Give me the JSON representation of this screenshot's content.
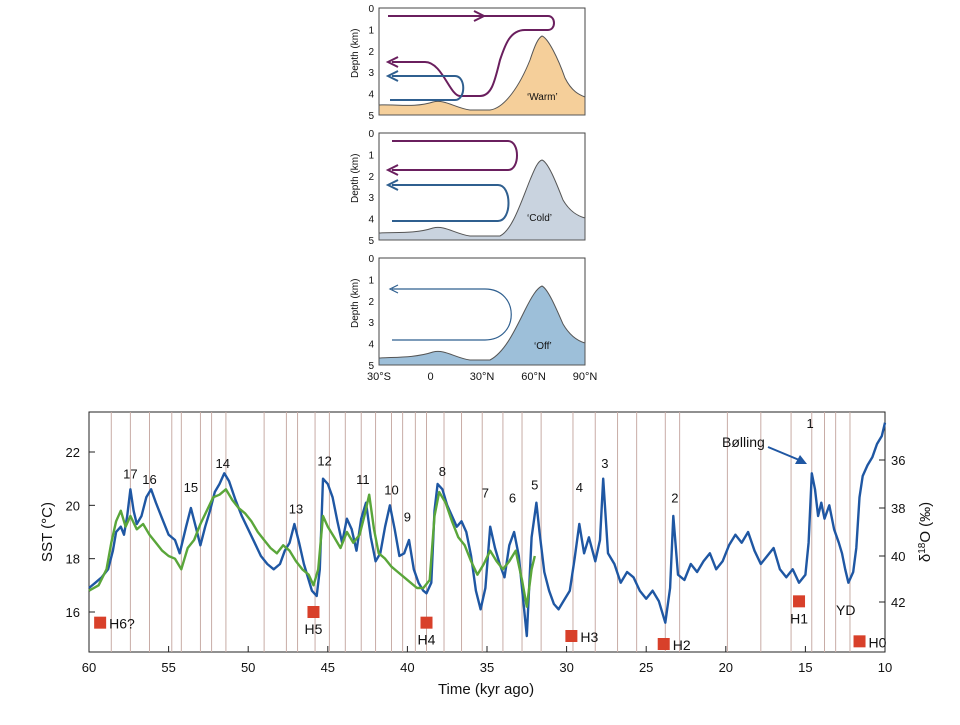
{
  "panels": {
    "ylabel": "Depth (km)",
    "depth_ticks": [
      "0",
      "1",
      "2",
      "3",
      "4",
      "5"
    ],
    "lat_ticks": [
      "30°S",
      "0",
      "30°N",
      "60°N",
      "90°N"
    ],
    "modes": [
      {
        "label": "‘Warm’",
        "fill": "#f5cf9a"
      },
      {
        "label": "‘Cold’",
        "fill": "#c9d3df"
      },
      {
        "label": "‘Off’",
        "fill": "#9dbfd9"
      }
    ],
    "colors": {
      "upper_cell": "#6a1f5e",
      "deep_cell": "#2f5f8f"
    }
  },
  "chart_data": {
    "type": "line",
    "xlabel": "Time (kyr ago)",
    "ylabel": "SST (°C)",
    "y2label": "δ18O (‰)",
    "xlim": [
      60,
      10
    ],
    "ylim": [
      14.5,
      23.5
    ],
    "x_ticks": [
      "60",
      "55",
      "50",
      "45",
      "40",
      "35",
      "30",
      "25",
      "20",
      "15",
      "10"
    ],
    "y_ticks": [
      "16",
      "18",
      "20",
      "22"
    ],
    "y2_ticks": [
      "36",
      "38",
      "40",
      "42"
    ],
    "interstadials": [
      {
        "label": "17",
        "x": 57.4,
        "sst": 21.0
      },
      {
        "label": "16",
        "x": 56.2,
        "sst": 20.8
      },
      {
        "label": "15",
        "x": 53.6,
        "sst": 20.5
      },
      {
        "label": "14",
        "x": 51.6,
        "sst": 21.4
      },
      {
        "label": "13",
        "x": 47.0,
        "sst": 19.7
      },
      {
        "label": "12",
        "x": 45.2,
        "sst": 21.5
      },
      {
        "label": "11",
        "x": 42.8,
        "sst": 20.8
      },
      {
        "label": "10",
        "x": 41.0,
        "sst": 20.4
      },
      {
        "label": "9",
        "x": 40.0,
        "sst": 19.4
      },
      {
        "label": "8",
        "x": 37.8,
        "sst": 21.1
      },
      {
        "label": "7",
        "x": 35.1,
        "sst": 20.3
      },
      {
        "label": "6",
        "x": 33.4,
        "sst": 20.1
      },
      {
        "label": "5",
        "x": 32.0,
        "sst": 20.6
      },
      {
        "label": "4",
        "x": 29.2,
        "sst": 20.5
      },
      {
        "label": "3",
        "x": 27.6,
        "sst": 21.4
      },
      {
        "label": "2",
        "x": 23.2,
        "sst": 20.1
      },
      {
        "label": "1",
        "x": 14.7,
        "sst": 22.9
      }
    ],
    "heinrich_events": [
      {
        "label": "H6?",
        "x": 59.3,
        "sst": 15.6
      },
      {
        "label": "H5",
        "x": 45.9,
        "sst": 16.0
      },
      {
        "label": "H4",
        "x": 38.8,
        "sst": 15.6
      },
      {
        "label": "H3",
        "x": 29.7,
        "sst": 15.1
      },
      {
        "label": "H2",
        "x": 23.9,
        "sst": 14.8
      },
      {
        "label": "H1",
        "x": 15.4,
        "sst": 16.4
      },
      {
        "label": "H0",
        "x": 11.6,
        "sst": 14.9
      }
    ],
    "annotations": {
      "bolling": "Bølling",
      "yd": "YD"
    },
    "grid_x": [
      58.6,
      57.4,
      56.2,
      54.8,
      54.2,
      53.0,
      52.3,
      51.4,
      49.0,
      47.6,
      46.9,
      45.8,
      44.9,
      43.9,
      42.9,
      42.0,
      41.0,
      40.3,
      39.5,
      38.8,
      37.7,
      36.6,
      35.3,
      34.0,
      32.8,
      31.6,
      29.6,
      28.2,
      26.8,
      25.6,
      23.8,
      22.9,
      19.9,
      17.8,
      15.9,
      14.6,
      13.8,
      13.1,
      12.2
    ],
    "series": [
      {
        "name": "",
        "color": "#1f57a3",
        "points": [
          [
            60.0,
            16.9
          ],
          [
            59.6,
            17.1
          ],
          [
            59.2,
            17.3
          ],
          [
            58.8,
            17.6
          ],
          [
            58.5,
            18.3
          ],
          [
            58.3,
            19.0
          ],
          [
            58.0,
            19.2
          ],
          [
            57.8,
            18.9
          ],
          [
            57.6,
            19.6
          ],
          [
            57.4,
            20.6
          ],
          [
            57.2,
            19.8
          ],
          [
            57.0,
            19.3
          ],
          [
            56.7,
            19.6
          ],
          [
            56.4,
            20.3
          ],
          [
            56.1,
            20.6
          ],
          [
            55.8,
            20.1
          ],
          [
            55.4,
            19.5
          ],
          [
            55.0,
            18.9
          ],
          [
            54.6,
            18.7
          ],
          [
            54.3,
            18.2
          ],
          [
            53.9,
            19.2
          ],
          [
            53.6,
            19.9
          ],
          [
            53.3,
            19.2
          ],
          [
            53.0,
            18.5
          ],
          [
            52.7,
            19.2
          ],
          [
            52.4,
            19.8
          ],
          [
            52.1,
            20.5
          ],
          [
            51.8,
            20.8
          ],
          [
            51.5,
            21.2
          ],
          [
            51.2,
            20.9
          ],
          [
            50.8,
            20.2
          ],
          [
            50.4,
            19.6
          ],
          [
            50.0,
            19.1
          ],
          [
            49.6,
            18.6
          ],
          [
            49.2,
            18.1
          ],
          [
            48.8,
            17.8
          ],
          [
            48.4,
            17.6
          ],
          [
            48.0,
            17.8
          ],
          [
            47.7,
            18.3
          ],
          [
            47.4,
            18.6
          ],
          [
            47.1,
            19.3
          ],
          [
            46.8,
            18.6
          ],
          [
            46.5,
            17.8
          ],
          [
            46.2,
            17.2
          ],
          [
            46.0,
            16.8
          ],
          [
            45.7,
            16.6
          ],
          [
            45.5,
            17.6
          ],
          [
            45.3,
            21.0
          ],
          [
            45.0,
            20.8
          ],
          [
            44.7,
            20.3
          ],
          [
            44.4,
            19.4
          ],
          [
            44.1,
            18.6
          ],
          [
            43.8,
            19.5
          ],
          [
            43.5,
            19.1
          ],
          [
            43.2,
            18.3
          ],
          [
            42.9,
            19.5
          ],
          [
            42.6,
            20.1
          ],
          [
            42.3,
            18.8
          ],
          [
            42.0,
            17.9
          ],
          [
            41.7,
            18.2
          ],
          [
            41.4,
            19.2
          ],
          [
            41.1,
            20.0
          ],
          [
            40.8,
            19.1
          ],
          [
            40.5,
            18.1
          ],
          [
            40.2,
            18.2
          ],
          [
            39.9,
            18.7
          ],
          [
            39.6,
            17.6
          ],
          [
            39.3,
            17.1
          ],
          [
            39.0,
            16.8
          ],
          [
            38.8,
            16.7
          ],
          [
            38.5,
            17.1
          ],
          [
            38.3,
            19.8
          ],
          [
            38.1,
            20.8
          ],
          [
            37.8,
            20.6
          ],
          [
            37.5,
            20.0
          ],
          [
            37.2,
            19.6
          ],
          [
            36.9,
            19.2
          ],
          [
            36.6,
            19.4
          ],
          [
            36.3,
            19.0
          ],
          [
            36.0,
            18.1
          ],
          [
            35.7,
            16.8
          ],
          [
            35.4,
            16.1
          ],
          [
            35.1,
            16.9
          ],
          [
            34.8,
            19.2
          ],
          [
            34.5,
            18.4
          ],
          [
            34.2,
            17.8
          ],
          [
            33.9,
            17.3
          ],
          [
            33.6,
            18.5
          ],
          [
            33.3,
            19.0
          ],
          [
            33.0,
            18.1
          ],
          [
            32.7,
            16.3
          ],
          [
            32.5,
            15.1
          ],
          [
            32.2,
            18.8
          ],
          [
            31.9,
            20.1
          ],
          [
            31.7,
            19.0
          ],
          [
            31.4,
            17.5
          ],
          [
            31.1,
            16.8
          ],
          [
            30.8,
            16.3
          ],
          [
            30.5,
            16.1
          ],
          [
            30.2,
            16.4
          ],
          [
            29.8,
            16.8
          ],
          [
            29.5,
            18.0
          ],
          [
            29.2,
            19.3
          ],
          [
            28.9,
            18.2
          ],
          [
            28.6,
            18.8
          ],
          [
            28.2,
            17.9
          ],
          [
            27.9,
            18.7
          ],
          [
            27.7,
            21.0
          ],
          [
            27.4,
            18.2
          ],
          [
            27.0,
            17.8
          ],
          [
            26.6,
            17.1
          ],
          [
            26.2,
            17.5
          ],
          [
            25.8,
            17.3
          ],
          [
            25.4,
            16.8
          ],
          [
            25.0,
            16.5
          ],
          [
            24.6,
            16.8
          ],
          [
            24.2,
            16.4
          ],
          [
            23.8,
            15.6
          ],
          [
            23.5,
            16.9
          ],
          [
            23.3,
            19.6
          ],
          [
            23.0,
            17.4
          ],
          [
            22.6,
            17.2
          ],
          [
            22.2,
            17.8
          ],
          [
            21.8,
            17.5
          ],
          [
            21.4,
            17.9
          ],
          [
            21.0,
            18.2
          ],
          [
            20.6,
            17.6
          ],
          [
            20.2,
            17.9
          ],
          [
            19.8,
            18.5
          ],
          [
            19.4,
            18.9
          ],
          [
            19.0,
            18.6
          ],
          [
            18.6,
            19.0
          ],
          [
            18.2,
            18.3
          ],
          [
            17.8,
            17.8
          ],
          [
            17.4,
            18.1
          ],
          [
            17.0,
            18.4
          ],
          [
            16.6,
            17.6
          ],
          [
            16.2,
            17.3
          ],
          [
            15.8,
            17.6
          ],
          [
            15.4,
            17.1
          ],
          [
            15.0,
            17.4
          ],
          [
            14.8,
            18.6
          ],
          [
            14.6,
            21.2
          ],
          [
            14.4,
            20.6
          ],
          [
            14.2,
            19.6
          ],
          [
            14.0,
            20.1
          ],
          [
            13.8,
            19.5
          ],
          [
            13.5,
            20.0
          ],
          [
            13.2,
            19.1
          ],
          [
            12.9,
            18.6
          ],
          [
            12.7,
            18.2
          ],
          [
            12.5,
            17.6
          ],
          [
            12.3,
            17.1
          ],
          [
            12.0,
            17.5
          ],
          [
            11.8,
            18.4
          ],
          [
            11.6,
            20.3
          ],
          [
            11.4,
            21.1
          ],
          [
            11.1,
            21.5
          ],
          [
            10.8,
            21.8
          ],
          [
            10.5,
            22.3
          ],
          [
            10.2,
            22.6
          ],
          [
            10.0,
            23.1
          ]
        ]
      },
      {
        "name": "",
        "color": "#5aa63a",
        "points": [
          [
            60.0,
            16.8
          ],
          [
            59.4,
            17.0
          ],
          [
            58.9,
            17.6
          ],
          [
            58.6,
            18.6
          ],
          [
            58.3,
            19.4
          ],
          [
            58.0,
            19.8
          ],
          [
            57.7,
            19.2
          ],
          [
            57.4,
            19.6
          ],
          [
            57.0,
            19.1
          ],
          [
            56.6,
            19.3
          ],
          [
            56.2,
            18.9
          ],
          [
            55.8,
            18.6
          ],
          [
            55.4,
            18.3
          ],
          [
            55.0,
            18.1
          ],
          [
            54.6,
            18.0
          ],
          [
            54.2,
            17.6
          ],
          [
            53.8,
            18.4
          ],
          [
            53.4,
            18.7
          ],
          [
            53.0,
            19.3
          ],
          [
            52.6,
            19.8
          ],
          [
            52.2,
            20.3
          ],
          [
            51.8,
            20.4
          ],
          [
            51.4,
            20.6
          ],
          [
            51.0,
            20.2
          ],
          [
            50.6,
            19.9
          ],
          [
            50.2,
            19.7
          ],
          [
            49.8,
            19.4
          ],
          [
            49.4,
            19.0
          ],
          [
            49.0,
            18.7
          ],
          [
            48.6,
            18.4
          ],
          [
            48.2,
            18.2
          ],
          [
            47.8,
            18.5
          ],
          [
            47.4,
            18.3
          ],
          [
            47.0,
            17.9
          ],
          [
            46.6,
            17.6
          ],
          [
            46.2,
            17.4
          ],
          [
            45.9,
            17.0
          ],
          [
            45.6,
            17.6
          ],
          [
            45.3,
            19.6
          ],
          [
            45.0,
            19.2
          ],
          [
            44.6,
            18.8
          ],
          [
            44.2,
            18.4
          ],
          [
            43.8,
            19.0
          ],
          [
            43.4,
            18.6
          ],
          [
            43.0,
            18.9
          ],
          [
            42.7,
            19.6
          ],
          [
            42.4,
            20.4
          ],
          [
            42.1,
            19.1
          ],
          [
            41.8,
            18.2
          ],
          [
            41.4,
            18.0
          ],
          [
            41.0,
            17.7
          ],
          [
            40.6,
            17.5
          ],
          [
            40.2,
            17.3
          ],
          [
            39.8,
            17.1
          ],
          [
            39.4,
            16.9
          ],
          [
            39.0,
            16.9
          ],
          [
            38.6,
            17.2
          ],
          [
            38.3,
            19.6
          ],
          [
            38.0,
            20.5
          ],
          [
            37.6,
            20.1
          ],
          [
            37.2,
            19.4
          ],
          [
            36.8,
            18.8
          ],
          [
            36.4,
            18.5
          ],
          [
            36.0,
            17.9
          ],
          [
            35.6,
            17.4
          ],
          [
            35.2,
            17.8
          ],
          [
            34.8,
            18.3
          ],
          [
            34.4,
            17.9
          ],
          [
            34.0,
            17.6
          ],
          [
            33.6,
            17.9
          ],
          [
            33.2,
            18.3
          ],
          [
            32.8,
            17.2
          ],
          [
            32.5,
            16.2
          ],
          [
            32.2,
            17.6
          ],
          [
            32.0,
            18.1
          ]
        ]
      }
    ]
  }
}
